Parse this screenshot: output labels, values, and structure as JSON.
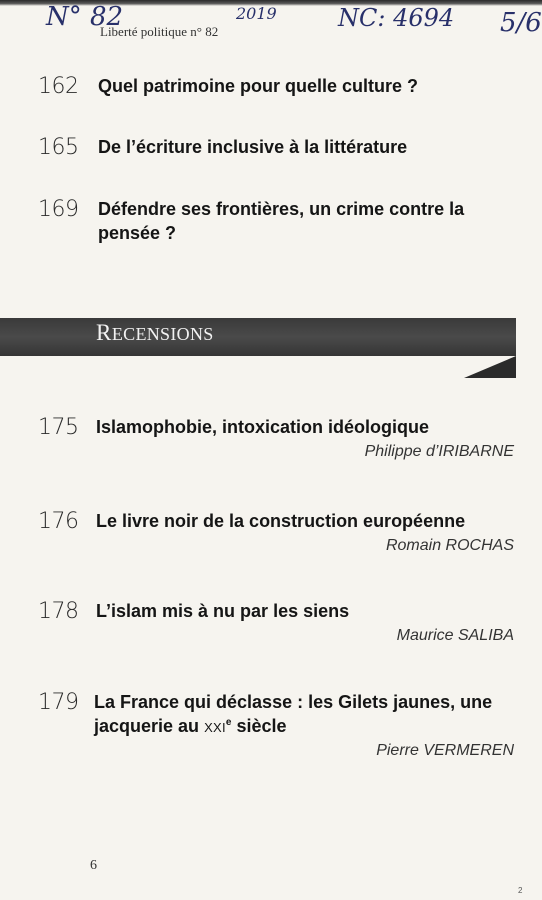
{
  "handwritten": {
    "issue_number": "N° 82",
    "year": "2019",
    "catalog_code": "NC: 4694",
    "page_fraction": "5/6"
  },
  "running_head": "Liberté politique n° 82",
  "top_entries": [
    {
      "page": "162",
      "title": "Quel patrimoine pour quelle culture ?"
    },
    {
      "page": "165",
      "title": "De l’écriture inclusive à la littérature"
    },
    {
      "page": "169",
      "title_line1": "Défendre ses frontières, un crime contre la",
      "title_line2": "pensée ?"
    }
  ],
  "section": {
    "title_initial": "R",
    "title_rest": "ECENSIONS",
    "band_color": "#3f3f3f"
  },
  "reviews": [
    {
      "page": "175",
      "title": "Islamophobie, intoxication idéologique",
      "author": "Philippe d’IRIBARNE"
    },
    {
      "page": "176",
      "title": "Le livre noir de la construction européenne",
      "author": "Romain ROCHAS"
    },
    {
      "page": "178",
      "title": "L’islam mis à nu par les siens",
      "author": "Maurice SALIBA"
    },
    {
      "page": "179",
      "title_line1": "La France qui déclasse : les Gilets jaunes, une",
      "title_line2_pre": "jacquerie au ",
      "century": "XXI",
      "century_sup": "e",
      "title_line2_post": " siècle",
      "author": "Pierre VERMEREN"
    }
  ],
  "folio": "6",
  "speck": "2"
}
